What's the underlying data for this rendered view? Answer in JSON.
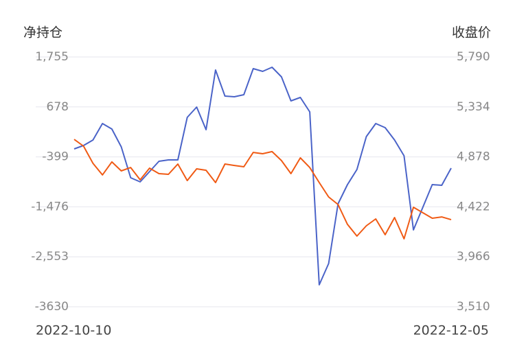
{
  "chart_data": {
    "type": "line",
    "y_label": "净持仓",
    "y2_label": "收盘价",
    "categories": [
      "2022-10-10",
      null,
      null,
      null,
      null,
      null,
      null,
      null,
      null,
      null,
      null,
      null,
      null,
      null,
      null,
      null,
      null,
      null,
      null,
      null,
      null,
      null,
      null,
      null,
      null,
      null,
      null,
      null,
      null,
      null,
      null,
      null,
      null,
      null,
      null,
      null,
      null,
      null,
      null,
      null,
      "2022-12-05"
    ],
    "series": [
      {
        "name": "净持仓",
        "color": "#4a63c8",
        "values": [
          -227,
          -153,
          -35,
          320,
          202,
          -183,
          -849,
          -938,
          -716,
          -494,
          -464,
          -464,
          453,
          675,
          187,
          1474,
          912,
          897,
          941,
          1504,
          1444,
          1533,
          1326,
          808,
          882,
          571,
          -3157,
          -2698,
          -1411,
          -997,
          -671,
          39,
          320,
          231,
          -35,
          -375,
          -1973,
          -1485,
          -997,
          -1011,
          -642
        ]
      },
      {
        "name": "收盘价",
        "color": "#f05a14",
        "axis": "y2",
        "values": [
          5038,
          4976,
          4819,
          4713,
          4832,
          4750,
          4781,
          4669,
          4775,
          4725,
          4719,
          4813,
          4662,
          4769,
          4756,
          4644,
          4813,
          4800,
          4788,
          4919,
          4907,
          4926,
          4844,
          4725,
          4869,
          4781,
          4644,
          4512,
          4443,
          4262,
          4155,
          4249,
          4312,
          4168,
          4324,
          4130,
          4418,
          4368,
          4318,
          4330,
          4305
        ]
      }
    ],
    "ylim": [
      -3630,
      1755
    ],
    "yticks": [
      -3630,
      {
        "value": -2553,
        "label": "-2,553"
      },
      {
        "value": -1476,
        "label": "-1,476"
      },
      -399,
      678,
      {
        "value": 1755,
        "label": "1,755"
      }
    ],
    "y2lim": [
      3510,
      5790
    ],
    "y2ticks": [
      {
        "value": 3510,
        "label": "3,510"
      },
      {
        "value": 3966,
        "label": "3,966"
      },
      {
        "value": 4422,
        "label": "4,422"
      },
      {
        "value": 4878,
        "label": "4,878"
      },
      {
        "value": 5334,
        "label": "5,334"
      },
      {
        "value": 5790,
        "label": "5,790"
      }
    ],
    "grid": true
  }
}
